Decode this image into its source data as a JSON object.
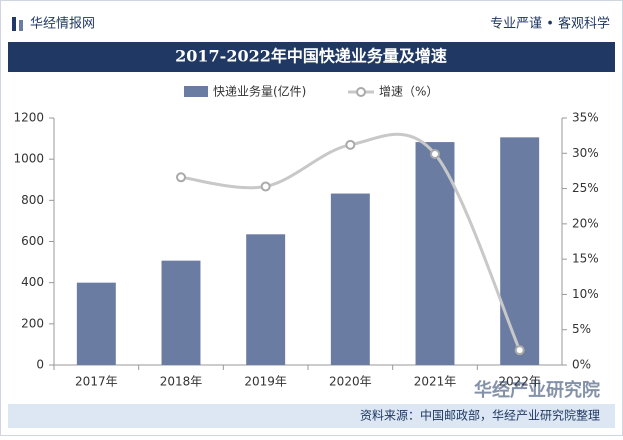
{
  "header": {
    "brand": "华经情报网",
    "slogan": "专业严谨 • 客观科学"
  },
  "chart_data": {
    "type": "bar",
    "title": "2017-2022年中国快递业务量及增速",
    "categories": [
      "2017年",
      "2018年",
      "2019年",
      "2020年",
      "2021年",
      "2022年"
    ],
    "series": [
      {
        "name": "快递业务量(亿件)",
        "type": "bar",
        "color": "#6b7ca3",
        "values": [
          400,
          507,
          635,
          833,
          1083,
          1106
        ]
      },
      {
        "name": "增速（%）",
        "type": "line",
        "axis": "y2",
        "color": "#c8c8c8",
        "values": [
          null,
          26.6,
          25.3,
          31.2,
          29.9,
          2.1
        ]
      }
    ],
    "ylim": [
      0,
      1200
    ],
    "yticks": [
      0,
      200,
      400,
      600,
      800,
      1000,
      1200
    ],
    "y2lim": [
      0,
      35
    ],
    "y2ticks": [
      {
        "value": 0,
        "label": "0%"
      },
      {
        "value": 5,
        "label": "5%"
      },
      {
        "value": 10,
        "label": "10%"
      },
      {
        "value": 15,
        "label": "15%"
      },
      {
        "value": 20,
        "label": "20%"
      },
      {
        "value": 25,
        "label": "25%"
      },
      {
        "value": 30,
        "label": "30%"
      },
      {
        "value": 35,
        "label": "35%"
      }
    ],
    "grid": false
  },
  "footer": {
    "source": "资料来源：中国邮政部，华经产业研究院整理",
    "watermark": "华经产业研究院"
  }
}
